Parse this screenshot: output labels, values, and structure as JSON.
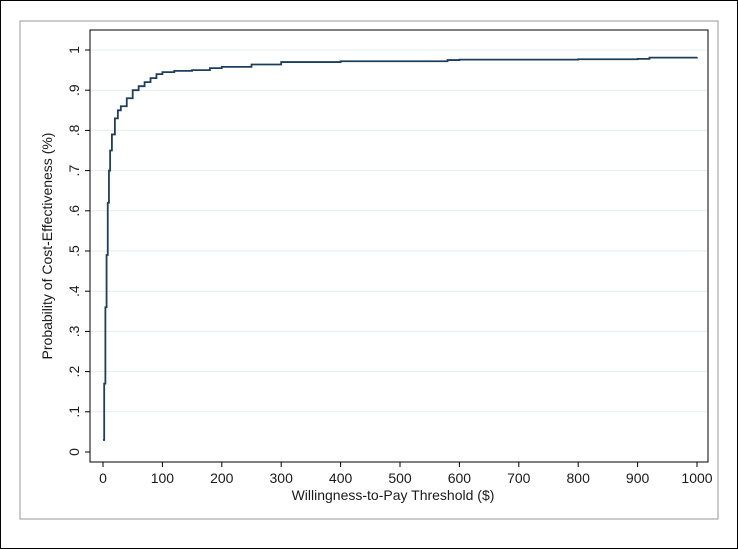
{
  "chart_data": {
    "type": "line",
    "title": "",
    "xlabel": "Willingness-to-Pay Threshold ($)",
    "ylabel": "Probability of Cost-Effectiveness (%)",
    "xlim": [
      0,
      1000
    ],
    "ylim": [
      0,
      1
    ],
    "x_ticks": [
      0,
      100,
      200,
      300,
      400,
      500,
      600,
      700,
      800,
      900,
      1000
    ],
    "x_tick_labels": [
      "0",
      "100",
      "200",
      "300",
      "400",
      "500",
      "600",
      "700",
      "800",
      "900",
      "1000"
    ],
    "y_ticks": [
      0,
      0.1,
      0.2,
      0.3,
      0.4,
      0.5,
      0.6,
      0.7,
      0.8,
      0.9,
      1.0
    ],
    "y_tick_labels": [
      "0",
      ".1",
      ".2",
      ".3",
      ".4",
      ".5",
      ".6",
      ".7",
      ".8",
      ".9",
      "1"
    ],
    "grid": true,
    "legend": "none",
    "line_color": "#1d3e5c",
    "series": [
      {
        "values": [
          [
            0,
            0.03
          ],
          [
            2,
            0.17
          ],
          [
            4,
            0.36
          ],
          [
            6,
            0.49
          ],
          [
            8,
            0.62
          ],
          [
            10,
            0.7
          ],
          [
            12,
            0.75
          ],
          [
            15,
            0.79
          ],
          [
            20,
            0.83
          ],
          [
            25,
            0.85
          ],
          [
            30,
            0.86
          ],
          [
            40,
            0.88
          ],
          [
            50,
            0.9
          ],
          [
            60,
            0.91
          ],
          [
            70,
            0.92
          ],
          [
            80,
            0.93
          ],
          [
            90,
            0.94
          ],
          [
            100,
            0.945
          ],
          [
            120,
            0.948
          ],
          [
            150,
            0.95
          ],
          [
            180,
            0.955
          ],
          [
            200,
            0.958
          ],
          [
            250,
            0.964
          ],
          [
            300,
            0.97
          ],
          [
            400,
            0.972
          ],
          [
            500,
            0.972
          ],
          [
            580,
            0.975
          ],
          [
            600,
            0.976
          ],
          [
            700,
            0.976
          ],
          [
            800,
            0.977
          ],
          [
            900,
            0.978
          ],
          [
            920,
            0.981
          ],
          [
            1000,
            0.982
          ]
        ]
      }
    ]
  }
}
